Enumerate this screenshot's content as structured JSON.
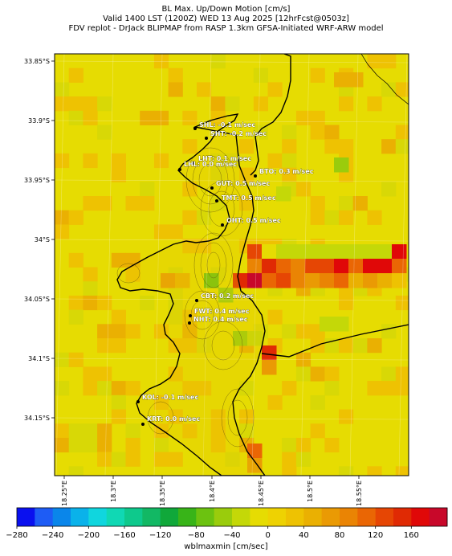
{
  "title": {
    "line1": "BL Max. Up/Down Motion [cm/s]",
    "line2": "Valid 1400 LST (1200Z) WED 13 Aug 2025 [12hrFcst@0503z]",
    "line3": "FDV replot - DrJack BLIPMAP from RASP 1.3km GFSA-Initiated WRF-ARW model"
  },
  "map": {
    "lat_ticks": [
      "33.85°S",
      "33.9°S",
      "33.95°S",
      "34°S",
      "34.05°S",
      "34.1°S",
      "34.15°S"
    ],
    "lon_ticks": [
      "18.25°E",
      "18.3°E",
      "18.35°E",
      "18.4°E",
      "18.45°E",
      "18.5°E",
      "18.55°E"
    ],
    "stations": [
      {
        "code": "SHL",
        "value": "-0.1",
        "unit": "m/sec"
      },
      {
        "code": "SHT",
        "value": "-0.2",
        "unit": "m/sec"
      },
      {
        "code": "LHT",
        "value": "0.1",
        "unit": "m/sec"
      },
      {
        "code": "LHL",
        "value": "0.0",
        "unit": "m/sec"
      },
      {
        "code": "BTO",
        "value": "0.3",
        "unit": "m/sec"
      },
      {
        "code": "GUT",
        "value": "0.5",
        "unit": "m/sec"
      },
      {
        "code": "TMT",
        "value": "0.5",
        "unit": "m/sec"
      },
      {
        "code": "OHT",
        "value": "0.5",
        "unit": "m/sec"
      },
      {
        "code": "CBT",
        "value": "0.2",
        "unit": "m/sec"
      },
      {
        "code": "FWT",
        "value": "0.4",
        "unit": "m/sec"
      },
      {
        "code": "NHT",
        "value": "0.4",
        "unit": "m/sec"
      },
      {
        "code": "KOL",
        "value": "-0.1",
        "unit": "m/sec"
      },
      {
        "code": "KRT",
        "value": "0.0",
        "unit": "m/sec"
      }
    ]
  },
  "colorbar": {
    "label": "wblmaxmin [cm/sec]",
    "ticks": [
      "−280",
      "−240",
      "−200",
      "−160",
      "−120",
      "−80",
      "−40",
      "0",
      "40",
      "80",
      "120",
      "160"
    ],
    "colors": [
      "#0a10ef",
      "#1e5cf5",
      "#0a86ea",
      "#0ab2ea",
      "#10d6de",
      "#10d8b4",
      "#0ec98c",
      "#12b864",
      "#10a83a",
      "#38b418",
      "#6cc210",
      "#9acc0c",
      "#c4d808",
      "#e6dc02",
      "#eed202",
      "#eec202",
      "#eab002",
      "#ea9a04",
      "#ea8404",
      "#ea6604",
      "#e64604",
      "#e02a04",
      "#e00808",
      "#c8082a"
    ]
  }
}
